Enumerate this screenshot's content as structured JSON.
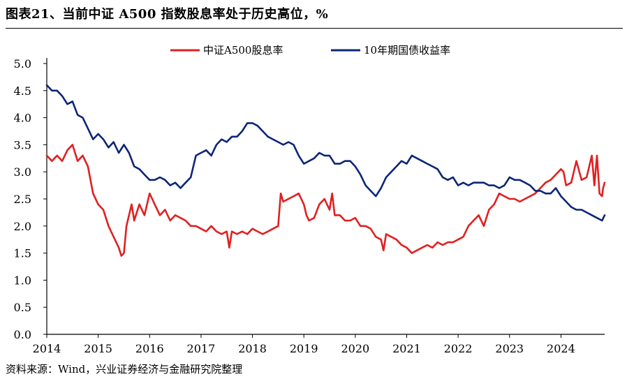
{
  "title": "图表21、当前中证 A500 指数股息率处于历史高位，%",
  "source": "资料来源：Wind，兴业证券经济与金融研究院整理",
  "colors": {
    "series1": "#e02020",
    "series2": "#0c2677",
    "axis": "#000000"
  },
  "chart_data": {
    "type": "line",
    "title": "当前中证 A500 指数股息率处于历史高位",
    "ylabel": "%",
    "xlabel": "",
    "ylim": [
      0.0,
      5.0
    ],
    "y_ticks": [
      "0.0",
      "0.5",
      "1.0",
      "1.5",
      "2.0",
      "2.5",
      "3.0",
      "3.5",
      "4.0",
      "4.5",
      "5.0"
    ],
    "x_ticks": [
      "2014",
      "2015",
      "2016",
      "2017",
      "2018",
      "2019",
      "2020",
      "2021",
      "2022",
      "2023",
      "2024"
    ],
    "xlim": [
      2014.0,
      2024.85
    ],
    "legend": {
      "position": "top-center",
      "entries": [
        "中证A500股息率",
        "10年期国债收益率"
      ]
    },
    "series": [
      {
        "name": "中证A500股息率",
        "x": [
          2014.0,
          2014.1,
          2014.2,
          2014.3,
          2014.4,
          2014.5,
          2014.6,
          2014.7,
          2014.8,
          2014.9,
          2015.0,
          2015.1,
          2015.2,
          2015.3,
          2015.4,
          2015.45,
          2015.5,
          2015.55,
          2015.6,
          2015.65,
          2015.7,
          2015.8,
          2015.9,
          2016.0,
          2016.05,
          2016.1,
          2016.2,
          2016.3,
          2016.4,
          2016.5,
          2016.6,
          2016.7,
          2016.8,
          2016.9,
          2017.0,
          2017.1,
          2017.2,
          2017.3,
          2017.4,
          2017.5,
          2017.55,
          2017.6,
          2017.7,
          2017.8,
          2017.9,
          2018.0,
          2018.1,
          2018.2,
          2018.3,
          2018.4,
          2018.5,
          2018.55,
          2018.6,
          2018.7,
          2018.8,
          2018.9,
          2019.0,
          2019.05,
          2019.1,
          2019.2,
          2019.3,
          2019.4,
          2019.5,
          2019.55,
          2019.6,
          2019.7,
          2019.8,
          2019.9,
          2020.0,
          2020.1,
          2020.2,
          2020.3,
          2020.4,
          2020.5,
          2020.55,
          2020.6,
          2020.7,
          2020.8,
          2020.9,
          2021.0,
          2021.1,
          2021.2,
          2021.3,
          2021.4,
          2021.5,
          2021.6,
          2021.7,
          2021.8,
          2021.9,
          2022.0,
          2022.1,
          2022.2,
          2022.3,
          2022.4,
          2022.5,
          2022.6,
          2022.7,
          2022.8,
          2022.9,
          2023.0,
          2023.1,
          2023.2,
          2023.3,
          2023.4,
          2023.5,
          2023.6,
          2023.7,
          2023.8,
          2023.9,
          2024.0,
          2024.05,
          2024.1,
          2024.2,
          2024.3,
          2024.4,
          2024.5,
          2024.6,
          2024.65,
          2024.7,
          2024.75,
          2024.8,
          2024.82,
          2024.85
        ],
        "values": [
          3.3,
          3.2,
          3.3,
          3.2,
          3.4,
          3.5,
          3.2,
          3.3,
          3.1,
          2.6,
          2.4,
          2.3,
          2.0,
          1.8,
          1.6,
          1.45,
          1.5,
          2.0,
          2.2,
          2.4,
          2.1,
          2.4,
          2.2,
          2.6,
          2.5,
          2.4,
          2.2,
          2.3,
          2.1,
          2.2,
          2.15,
          2.1,
          2.0,
          2.0,
          1.95,
          1.9,
          2.0,
          1.9,
          1.85,
          1.9,
          1.6,
          1.9,
          1.85,
          1.9,
          1.85,
          1.95,
          1.9,
          1.85,
          1.9,
          1.95,
          2.0,
          2.6,
          2.45,
          2.5,
          2.55,
          2.6,
          2.4,
          2.2,
          2.1,
          2.15,
          2.4,
          2.5,
          2.3,
          2.6,
          2.2,
          2.2,
          2.1,
          2.1,
          2.15,
          2.0,
          2.0,
          1.95,
          1.8,
          1.75,
          1.55,
          1.85,
          1.8,
          1.75,
          1.65,
          1.6,
          1.5,
          1.55,
          1.6,
          1.65,
          1.6,
          1.7,
          1.65,
          1.7,
          1.7,
          1.75,
          1.8,
          2.0,
          2.1,
          2.2,
          2.0,
          2.3,
          2.4,
          2.6,
          2.55,
          2.5,
          2.5,
          2.45,
          2.5,
          2.55,
          2.6,
          2.7,
          2.8,
          2.85,
          2.95,
          3.05,
          3.0,
          2.75,
          2.8,
          3.2,
          2.85,
          2.9,
          3.3,
          2.75,
          3.3,
          2.6,
          2.55,
          2.7,
          2.8
        ]
      },
      {
        "name": "10年期国债收益率",
        "x": [
          2014.0,
          2014.1,
          2014.2,
          2014.3,
          2014.4,
          2014.5,
          2014.6,
          2014.7,
          2014.8,
          2014.9,
          2015.0,
          2015.1,
          2015.2,
          2015.3,
          2015.4,
          2015.5,
          2015.6,
          2015.7,
          2015.8,
          2015.9,
          2016.0,
          2016.1,
          2016.2,
          2016.3,
          2016.4,
          2016.5,
          2016.6,
          2016.7,
          2016.8,
          2016.9,
          2017.0,
          2017.1,
          2017.2,
          2017.3,
          2017.4,
          2017.5,
          2017.6,
          2017.7,
          2017.8,
          2017.9,
          2018.0,
          2018.1,
          2018.2,
          2018.3,
          2018.4,
          2018.5,
          2018.6,
          2018.7,
          2018.8,
          2018.9,
          2019.0,
          2019.1,
          2019.2,
          2019.3,
          2019.4,
          2019.5,
          2019.6,
          2019.7,
          2019.8,
          2019.9,
          2020.0,
          2020.1,
          2020.2,
          2020.3,
          2020.4,
          2020.5,
          2020.6,
          2020.7,
          2020.8,
          2020.9,
          2021.0,
          2021.1,
          2021.2,
          2021.3,
          2021.4,
          2021.5,
          2021.6,
          2021.7,
          2021.8,
          2021.9,
          2022.0,
          2022.1,
          2022.2,
          2022.3,
          2022.4,
          2022.5,
          2022.6,
          2022.7,
          2022.8,
          2022.9,
          2023.0,
          2023.1,
          2023.2,
          2023.3,
          2023.4,
          2023.5,
          2023.6,
          2023.7,
          2023.8,
          2023.9,
          2024.0,
          2024.1,
          2024.2,
          2024.3,
          2024.4,
          2024.5,
          2024.6,
          2024.7,
          2024.8,
          2024.85
        ],
        "values": [
          4.6,
          4.5,
          4.5,
          4.4,
          4.25,
          4.3,
          4.05,
          4.0,
          3.8,
          3.6,
          3.7,
          3.6,
          3.45,
          3.55,
          3.35,
          3.5,
          3.35,
          3.1,
          3.05,
          2.95,
          2.85,
          2.85,
          2.9,
          2.85,
          2.75,
          2.8,
          2.7,
          2.8,
          2.9,
          3.3,
          3.35,
          3.4,
          3.3,
          3.5,
          3.6,
          3.55,
          3.65,
          3.65,
          3.75,
          3.9,
          3.9,
          3.85,
          3.75,
          3.65,
          3.6,
          3.55,
          3.5,
          3.55,
          3.5,
          3.3,
          3.15,
          3.2,
          3.25,
          3.35,
          3.3,
          3.3,
          3.15,
          3.15,
          3.2,
          3.2,
          3.1,
          2.95,
          2.75,
          2.65,
          2.55,
          2.7,
          2.9,
          3.0,
          3.1,
          3.2,
          3.15,
          3.3,
          3.25,
          3.2,
          3.15,
          3.1,
          3.05,
          2.9,
          2.85,
          2.9,
          2.75,
          2.8,
          2.75,
          2.8,
          2.8,
          2.8,
          2.75,
          2.75,
          2.7,
          2.75,
          2.9,
          2.85,
          2.85,
          2.8,
          2.75,
          2.65,
          2.65,
          2.6,
          2.6,
          2.7,
          2.55,
          2.45,
          2.35,
          2.3,
          2.3,
          2.25,
          2.2,
          2.15,
          2.1,
          2.2
        ]
      }
    ]
  }
}
